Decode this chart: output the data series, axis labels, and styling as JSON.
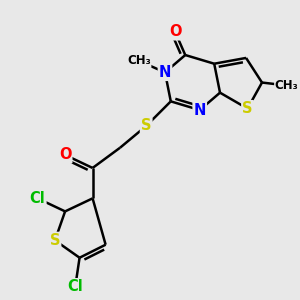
{
  "bg_color": "#e8e8e8",
  "atom_colors": {
    "O": "#ff0000",
    "N": "#0000ff",
    "S": "#cccc00",
    "Cl": "#00bb00",
    "C": "#000000"
  },
  "bond_color": "#000000",
  "bond_lw": 1.8,
  "font_size": 10.5
}
